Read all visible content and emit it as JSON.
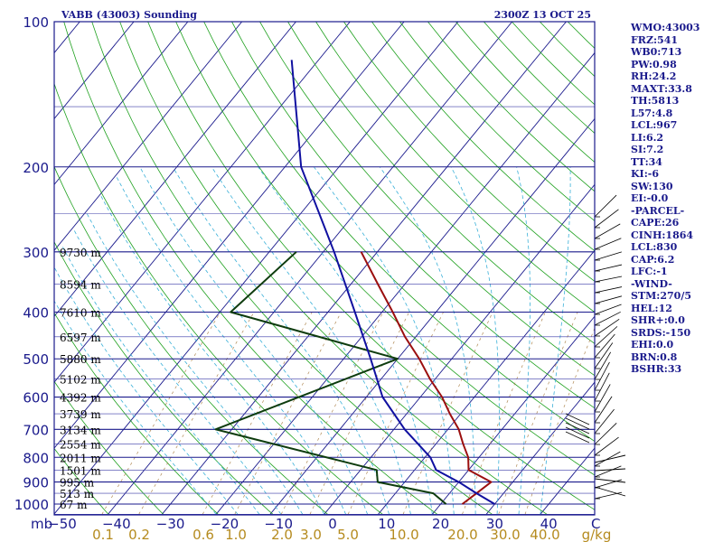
{
  "chart_data": {
    "type": "skew-t",
    "title": "VABB (43003) Sounding",
    "timestamp": "2300Z 13 OCT 25",
    "y_unit_label": "mb",
    "x_unit_label": "C",
    "mixing_ratio_unit": "g/kg",
    "pressure_ticks": [
      100,
      200,
      300,
      400,
      500,
      600,
      700,
      800,
      900,
      1000
    ],
    "pressure_range": [
      100,
      1050
    ],
    "temperature_ticks": [
      -50,
      -40,
      -30,
      -20,
      -10,
      0,
      10,
      20,
      30,
      40
    ],
    "temperature_range_at_bottom": [
      -50,
      50
    ],
    "mixing_ratio_labels": [
      "0.1",
      "0.2",
      "0.6",
      "1.0",
      "2.0",
      "3.0",
      "5.0",
      "10.0",
      "20.0",
      "30.0",
      "40.0"
    ],
    "heights": [
      {
        "p": 300,
        "label": "9730 m"
      },
      {
        "p": 350,
        "label": "8594 m"
      },
      {
        "p": 400,
        "label": "7610 m"
      },
      {
        "p": 450,
        "label": "6597 m"
      },
      {
        "p": 500,
        "label": "5880 m"
      },
      {
        "p": 550,
        "label": "5102 m"
      },
      {
        "p": 600,
        "label": "4392 m"
      },
      {
        "p": 650,
        "label": "3739 m"
      },
      {
        "p": 700,
        "label": "3134 m"
      },
      {
        "p": 750,
        "label": "2554 m"
      },
      {
        "p": 800,
        "label": "2011 m"
      },
      {
        "p": 850,
        "label": "1501 m"
      },
      {
        "p": 900,
        "label": "995 m"
      },
      {
        "p": 950,
        "label": "513 m"
      },
      {
        "p": 1000,
        "label": "67 m"
      }
    ],
    "series": [
      {
        "name": "temperature",
        "color": "#9b0f0f",
        "points": [
          [
            300,
            -33
          ],
          [
            350,
            -25
          ],
          [
            400,
            -18
          ],
          [
            450,
            -12
          ],
          [
            500,
            -6
          ],
          [
            550,
            -1
          ],
          [
            600,
            4
          ],
          [
            650,
            8
          ],
          [
            700,
            12
          ],
          [
            750,
            15
          ],
          [
            800,
            18
          ],
          [
            850,
            20
          ],
          [
            900,
            26
          ],
          [
            950,
            25
          ],
          [
            1000,
            24
          ]
        ]
      },
      {
        "name": "dewpoint",
        "color": "#0e3c0e",
        "points": [
          [
            300,
            -45
          ],
          [
            400,
            -48
          ],
          [
            500,
            -10
          ],
          [
            700,
            -33
          ],
          [
            850,
            3
          ],
          [
            900,
            5
          ],
          [
            950,
            17
          ],
          [
            1000,
            21
          ]
        ]
      },
      {
        "name": "parcel",
        "color": "#1010a0",
        "points": [
          [
            120,
            -75
          ],
          [
            200,
            -57
          ],
          [
            300,
            -38
          ],
          [
            400,
            -25
          ],
          [
            500,
            -15
          ],
          [
            600,
            -7
          ],
          [
            700,
            2
          ],
          [
            800,
            11
          ],
          [
            850,
            14
          ],
          [
            900,
            20
          ],
          [
            950,
            25
          ],
          [
            1000,
            30
          ]
        ]
      }
    ]
  },
  "indices": [
    "WMO:43003",
    "FRZ:541",
    "WB0:713",
    "PW:0.98",
    "RH:24.2",
    "MAXT:33.8",
    "TH:5813",
    "L57:4.8",
    "LCL:967",
    "LI:6.2",
    "SI:7.2",
    "TT:34",
    "KI:-6",
    "SW:130",
    "EI:-0.0",
    "-PARCEL-",
    "CAPE:26",
    "CINH:1864",
    "LCL:830",
    "CAP:6.2",
    "LFC:-1",
    "-WIND-",
    "STM:270/5",
    "HEL:12",
    "SHR+:0.0",
    "SRDS:-150",
    "EHI:0.0",
    "BRN:0.8",
    "BSHR:33"
  ],
  "colors": {
    "frame": "#1a1a8c",
    "isobar": "#1a1a8c",
    "isotherm": "#1a1a8c",
    "dry_adiabat": "#1ea01e",
    "moist_adiabat": "#3ab0d8",
    "mixing_ratio": "#b08a55",
    "mr_label": "#b58b1f",
    "wind": "#000000"
  }
}
